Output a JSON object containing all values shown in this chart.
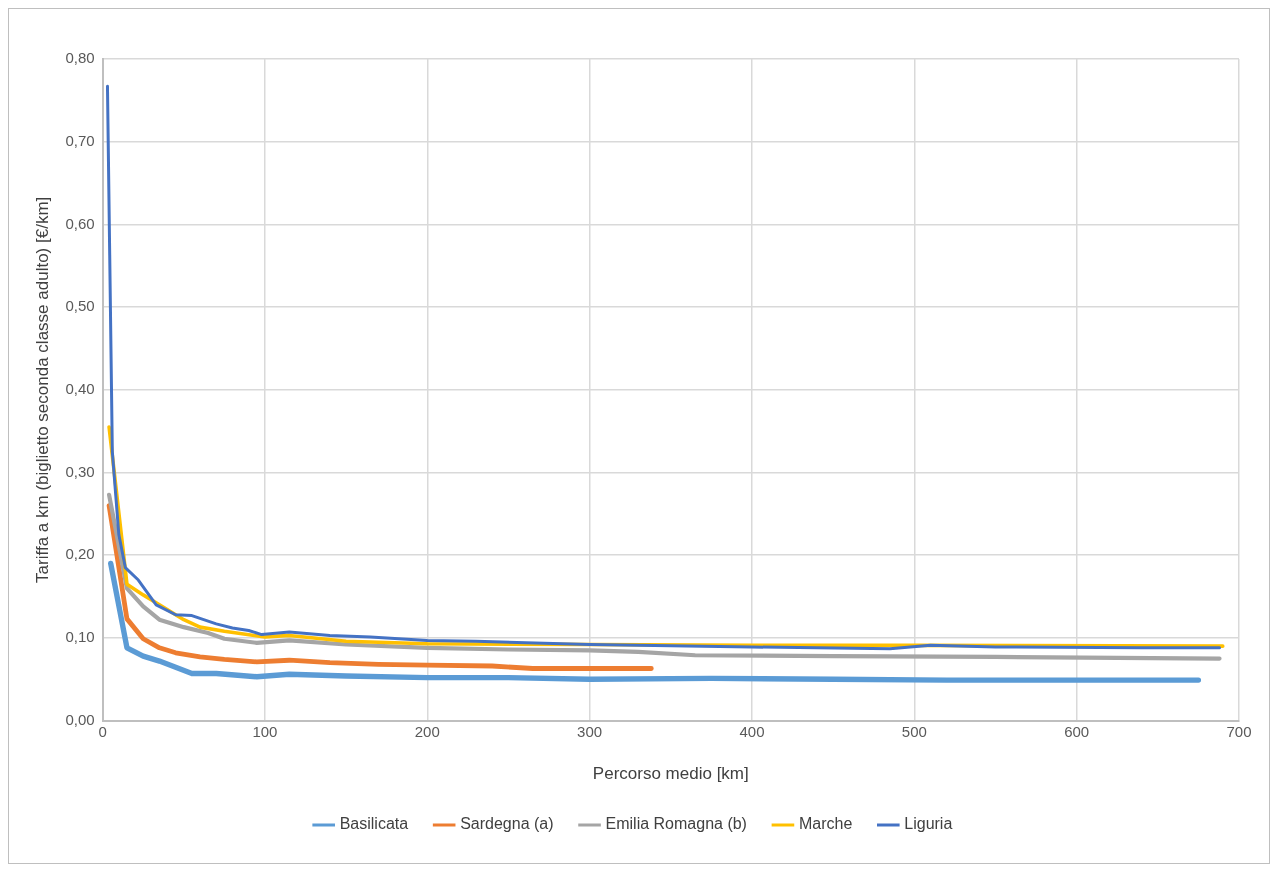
{
  "chart_data": {
    "type": "line",
    "xlabel": "Percorso medio [km]",
    "ylabel": "Tariffa a km (biglietto seconda classe adulto) [€/km]",
    "xlim": [
      0,
      700
    ],
    "xticks": [
      0,
      100,
      200,
      300,
      400,
      500,
      600,
      700
    ],
    "ylim": [
      0,
      0.8
    ],
    "yticks": [
      {
        "value": 0,
        "label": "0,00"
      },
      {
        "value": 0.1,
        "label": "0,10"
      },
      {
        "value": 0.2,
        "label": "0,20"
      },
      {
        "value": 0.3,
        "label": "0,30"
      },
      {
        "value": 0.4,
        "label": "0,40"
      },
      {
        "value": 0.5,
        "label": "0,50"
      },
      {
        "value": 0.6,
        "label": "0,60"
      },
      {
        "value": 0.7,
        "label": "0,70"
      },
      {
        "value": 0.8,
        "label": "0,80"
      }
    ],
    "grid": true,
    "legend": "bottom",
    "marker": "none",
    "line_style": "solid",
    "series": [
      {
        "name": "Basilicata",
        "color": "#5b9bd5",
        "x": [
          5,
          15,
          25,
          35,
          55,
          70,
          95,
          115,
          150,
          200,
          250,
          300,
          375,
          450,
          520,
          600,
          675
        ],
        "values": [
          0.19,
          0.088,
          0.078,
          0.072,
          0.057,
          0.057,
          0.053,
          0.056,
          0.054,
          0.052,
          0.052,
          0.05,
          0.051,
          0.05,
          0.049,
          0.049,
          0.049
        ]
      },
      {
        "name": "Sardegna (a)",
        "color": "#ed7d31",
        "x": [
          4,
          15,
          25,
          35,
          45,
          60,
          75,
          95,
          115,
          140,
          170,
          200,
          240,
          265,
          300,
          338
        ],
        "values": [
          0.26,
          0.123,
          0.099,
          0.088,
          0.082,
          0.077,
          0.074,
          0.071,
          0.073,
          0.07,
          0.068,
          0.067,
          0.066,
          0.063,
          0.063,
          0.063
        ]
      },
      {
        "name": "Emilia Romagna (b)",
        "color": "#a5a5a5",
        "x": [
          4,
          15,
          25,
          35,
          50,
          65,
          75,
          95,
          115,
          150,
          200,
          250,
          300,
          330,
          365,
          450,
          550,
          688
        ],
        "values": [
          0.273,
          0.16,
          0.138,
          0.122,
          0.113,
          0.106,
          0.099,
          0.094,
          0.097,
          0.092,
          0.088,
          0.086,
          0.085,
          0.083,
          0.079,
          0.078,
          0.077,
          0.075
        ]
      },
      {
        "name": "Marche",
        "color": "#ffc000",
        "x": [
          4,
          15,
          25,
          35,
          50,
          60,
          75,
          100,
          115,
          150,
          200,
          300,
          400,
          500,
          690
        ],
        "values": [
          0.355,
          0.165,
          0.152,
          0.14,
          0.122,
          0.113,
          0.108,
          0.101,
          0.103,
          0.096,
          0.093,
          0.092,
          0.091,
          0.091,
          0.09
        ]
      },
      {
        "name": "Liguria",
        "color": "#4472c4",
        "x": [
          3,
          6,
          10,
          14,
          22,
          33,
          45,
          55,
          70,
          80,
          90,
          98,
          115,
          140,
          165,
          200,
          230,
          300,
          400,
          485,
          510,
          550,
          640,
          688
        ],
        "values": [
          0.767,
          0.325,
          0.225,
          0.185,
          0.17,
          0.14,
          0.128,
          0.127,
          0.117,
          0.112,
          0.109,
          0.104,
          0.107,
          0.103,
          0.101,
          0.097,
          0.096,
          0.092,
          0.089,
          0.087,
          0.091,
          0.089,
          0.088,
          0.088
        ]
      }
    ]
  }
}
